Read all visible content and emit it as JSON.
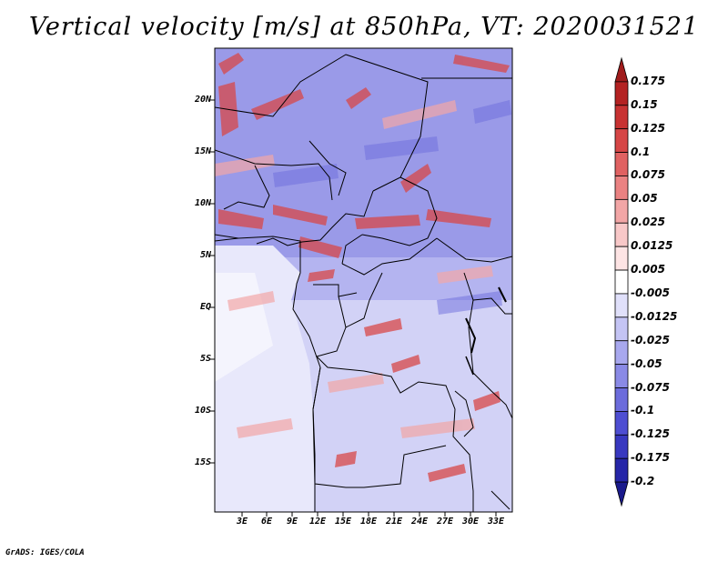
{
  "title": "Vertical velocity [m/s] at 850hPa, VT: 2020031521",
  "lat_labels": [
    "20N",
    "15N",
    "10N",
    "5N",
    "EQ",
    "5S",
    "10S",
    "15S"
  ],
  "lon_labels": [
    "3E",
    "6E",
    "9E",
    "12E",
    "15E",
    "18E",
    "21E",
    "24E",
    "27E",
    "30E",
    "33E"
  ],
  "colorbar": {
    "levels": [
      "0.175",
      "0.15",
      "0.125",
      "0.1",
      "0.075",
      "0.05",
      "0.025",
      "0.0125",
      "0.005",
      "-0.005",
      "-0.0125",
      "-0.025",
      "-0.05",
      "-0.075",
      "-0.1",
      "-0.125",
      "-0.175",
      "-0.2"
    ],
    "colors": [
      "#a01c1c",
      "#b42222",
      "#c83232",
      "#d64646",
      "#e06262",
      "#ea8282",
      "#f2a6a6",
      "#f8c8c8",
      "#fde4e4",
      "#ffffff",
      "#e0e0fa",
      "#c4c4f4",
      "#a8a8ee",
      "#8a8ae6",
      "#6c6cdc",
      "#4e4ed2",
      "#3838c0",
      "#2626a8",
      "#1a1a8c"
    ]
  },
  "footer": "GrADS: IGES/COLA"
}
